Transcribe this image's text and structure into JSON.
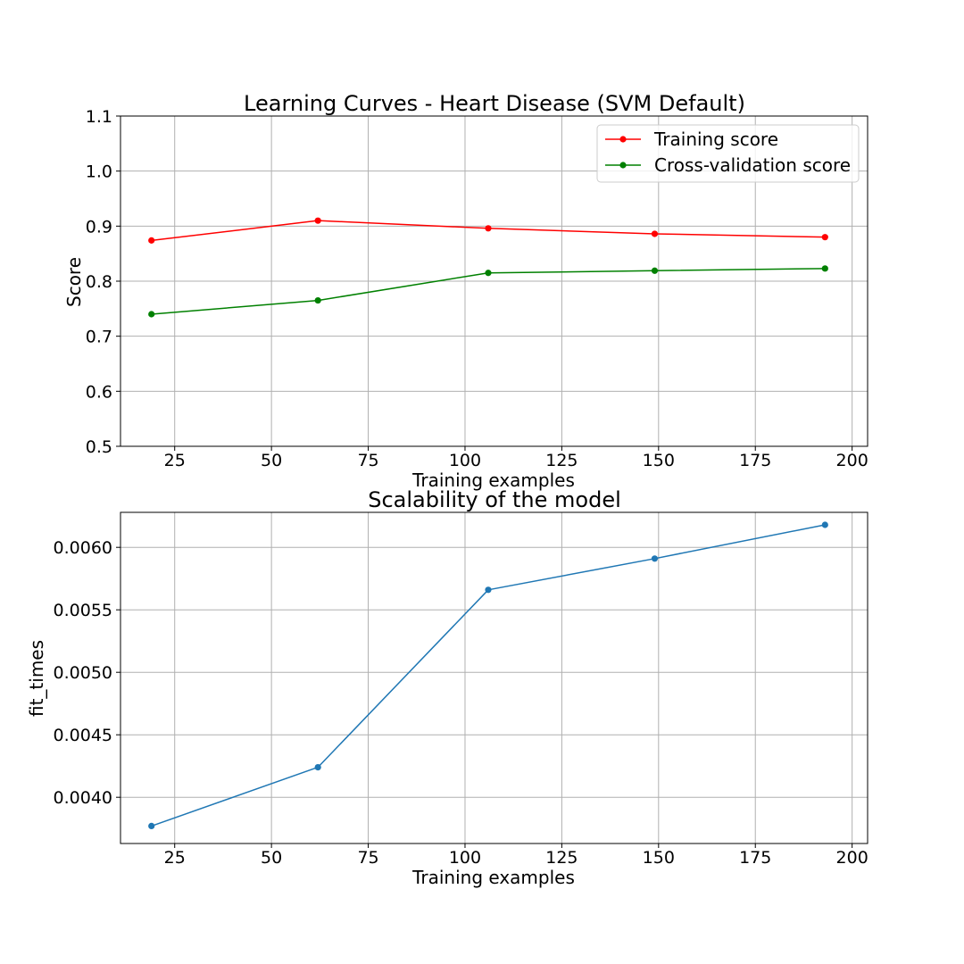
{
  "chart_data": [
    {
      "type": "line",
      "title": "Learning Curves - Heart Disease (SVM Default)",
      "xlabel": "Training examples",
      "ylabel": "Score",
      "xlim": [
        11,
        204
      ],
      "ylim": [
        0.5,
        1.1
      ],
      "xticks": [
        25,
        50,
        75,
        100,
        125,
        150,
        175,
        200
      ],
      "yticks": [
        0.5,
        0.6,
        0.7,
        0.8,
        0.9,
        1.0,
        1.1
      ],
      "ytick_decimals": 1,
      "grid": true,
      "legend": "top-right",
      "x": [
        19,
        62,
        106,
        149,
        193
      ],
      "series": [
        {
          "name": "Training score",
          "color": "#ff0000",
          "values": [
            0.874,
            0.91,
            0.896,
            0.886,
            0.88
          ]
        },
        {
          "name": "Cross-validation score",
          "color": "#008000",
          "values": [
            0.74,
            0.765,
            0.815,
            0.819,
            0.823
          ]
        }
      ]
    },
    {
      "type": "line",
      "title": "Scalability of the model",
      "xlabel": "Training examples",
      "ylabel": "fit_times",
      "xlim": [
        11,
        204
      ],
      "ylim": [
        0.00363,
        0.00628
      ],
      "xticks": [
        25,
        50,
        75,
        100,
        125,
        150,
        175,
        200
      ],
      "yticks": [
        0.004,
        0.0045,
        0.005,
        0.0055,
        0.006
      ],
      "ytick_decimals": 4,
      "grid": true,
      "legend": "none",
      "x": [
        19,
        62,
        106,
        149,
        193
      ],
      "series": [
        {
          "color": "#1f77b4",
          "values": [
            0.00377,
            0.00424,
            0.00566,
            0.00591,
            0.00618
          ]
        }
      ]
    }
  ]
}
